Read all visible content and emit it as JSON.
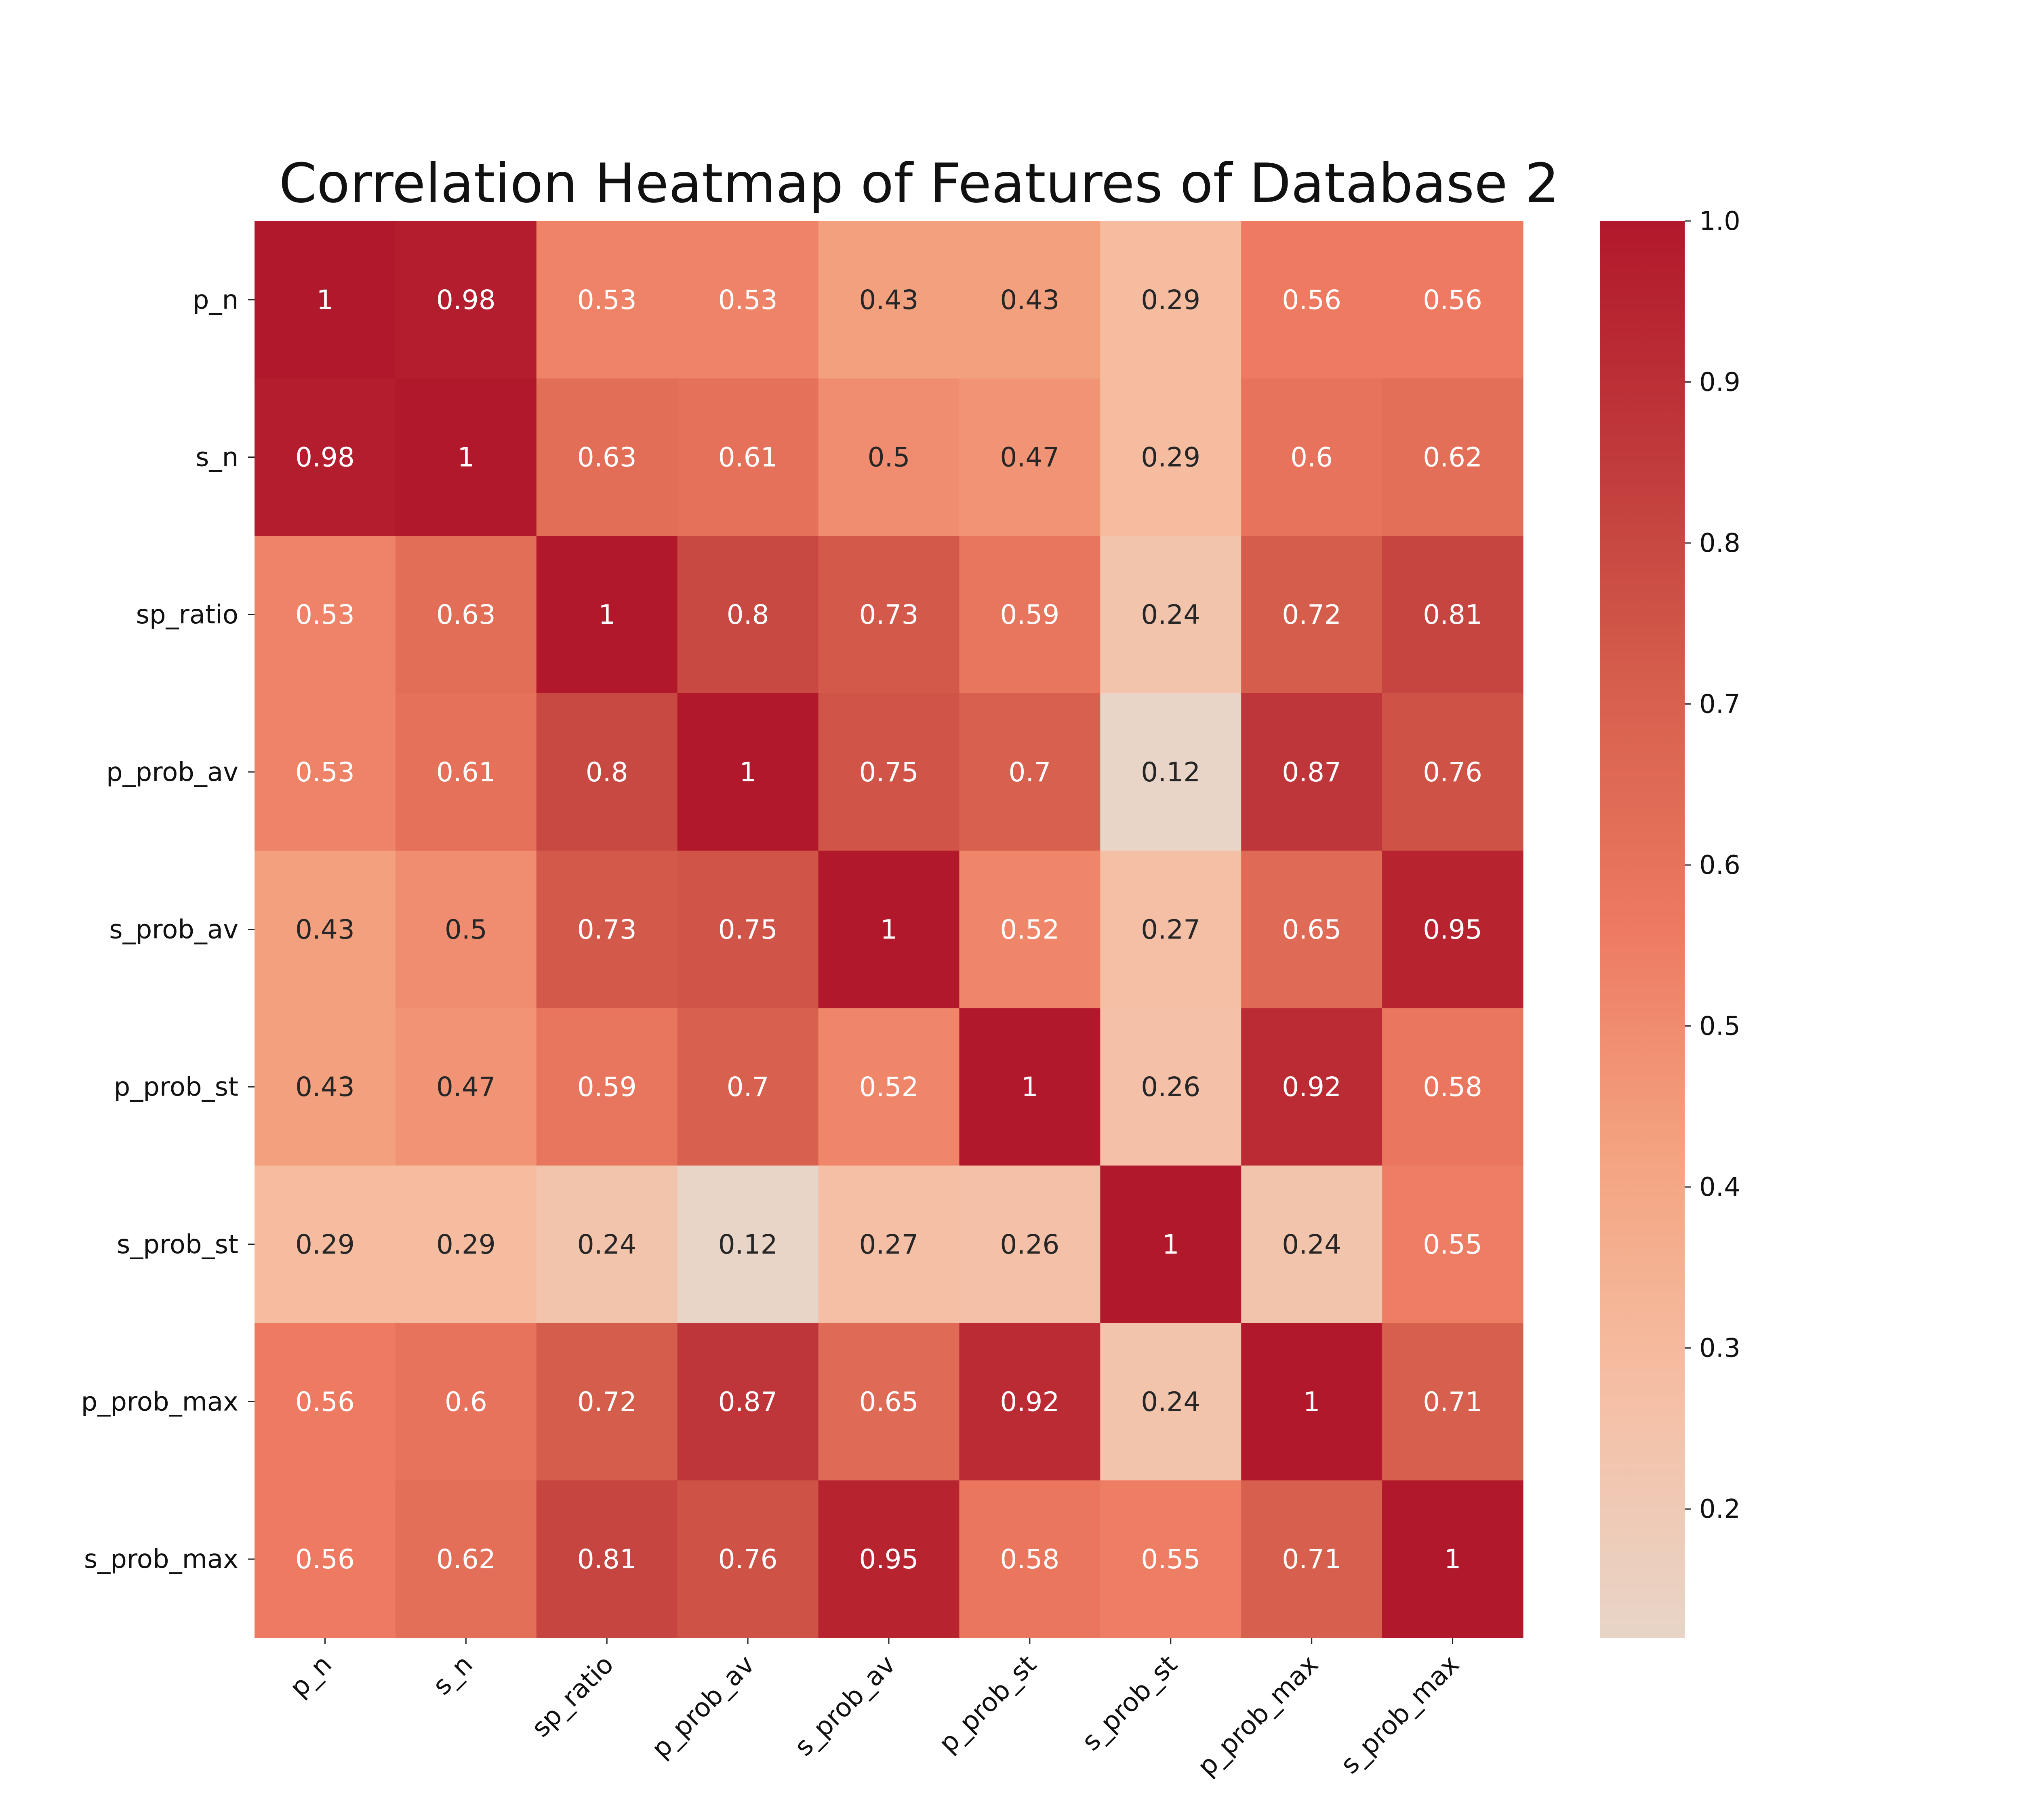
{
  "chart_data": {
    "type": "heatmap",
    "title": "Correlation Heatmap of Features of Database 2",
    "rows": [
      "p_n",
      "s_n",
      "sp_ratio",
      "p_prob_av",
      "s_prob_av",
      "p_prob_st",
      "s_prob_st",
      "p_prob_max",
      "s_prob_max"
    ],
    "columns": [
      "p_n",
      "s_n",
      "sp_ratio",
      "p_prob_av",
      "s_prob_av",
      "p_prob_st",
      "s_prob_st",
      "p_prob_max",
      "s_prob_max"
    ],
    "values": [
      [
        1,
        0.98,
        0.53,
        0.53,
        0.43,
        0.43,
        0.29,
        0.56,
        0.56
      ],
      [
        0.98,
        1,
        0.63,
        0.61,
        0.5,
        0.47,
        0.29,
        0.6,
        0.62
      ],
      [
        0.53,
        0.63,
        1,
        0.8,
        0.73,
        0.59,
        0.24,
        0.72,
        0.81
      ],
      [
        0.53,
        0.61,
        0.8,
        1,
        0.75,
        0.7,
        0.12,
        0.87,
        0.76
      ],
      [
        0.43,
        0.5,
        0.73,
        0.75,
        1,
        0.52,
        0.27,
        0.65,
        0.95
      ],
      [
        0.43,
        0.47,
        0.59,
        0.7,
        0.52,
        1,
        0.26,
        0.92,
        0.58
      ],
      [
        0.29,
        0.29,
        0.24,
        0.12,
        0.27,
        0.26,
        1,
        0.24,
        0.55
      ],
      [
        0.56,
        0.6,
        0.72,
        0.87,
        0.65,
        0.92,
        0.24,
        1,
        0.71
      ],
      [
        0.56,
        0.62,
        0.81,
        0.76,
        0.95,
        0.58,
        0.55,
        0.71,
        1
      ]
    ],
    "colorbar": {
      "range": [
        0.12,
        1.0
      ],
      "ticks": [
        "0.2",
        "0.3",
        "0.4",
        "0.5",
        "0.6",
        "0.7",
        "0.8",
        "0.9",
        "1.0"
      ],
      "colormap": [
        "#e8d5c8",
        "#f5c0a6",
        "#f4a582",
        "#ed7a61",
        "#d6604d",
        "#c03a3b",
        "#b2182b"
      ]
    },
    "xlabel": "",
    "ylabel": "",
    "x_tick_rotation": 45
  }
}
